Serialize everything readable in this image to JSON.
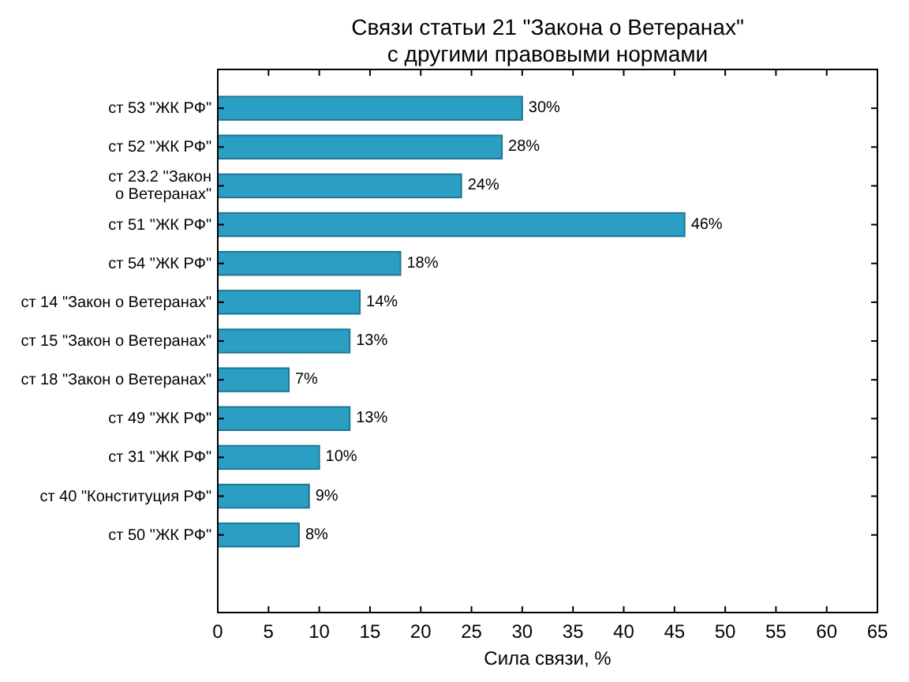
{
  "chart_data": {
    "type": "bar",
    "orientation": "horizontal",
    "title": "Связи статьи 21 \"Закона о Ветеранах\"\nс другими правовыми нормами",
    "xlabel": "Сила связи, %",
    "categories": [
      "ст 53 \"ЖК РФ\"",
      "ст 52 \"ЖК РФ\"",
      "ст 23.2 \"Закон\nо Ветеранах\"",
      "ст 51 \"ЖК РФ\"",
      "ст 54 \"ЖК РФ\"",
      "ст 14 \"Закон о Ветеранах\"",
      "ст 15 \"Закон о Ветеранах\"",
      "ст 18 \"Закон о Ветеранах\"",
      "ст 49 \"ЖК РФ\"",
      "ст 31 \"ЖК РФ\"",
      "ст 40 \"Конституция РФ\"",
      "ст 50 \"ЖК РФ\""
    ],
    "values": [
      30,
      28,
      24,
      46,
      18,
      14,
      13,
      7,
      13,
      10,
      9,
      8
    ],
    "value_labels": [
      "30%",
      "28%",
      "24%",
      "46%",
      "18%",
      "14%",
      "13%",
      "7%",
      "13%",
      "10%",
      "9%",
      "8%"
    ],
    "color": "#2b9ec4",
    "xlim": [
      0,
      65
    ],
    "xticks": [
      0,
      5,
      10,
      15,
      20,
      25,
      30,
      35,
      40,
      45,
      50,
      55,
      60,
      65
    ]
  }
}
